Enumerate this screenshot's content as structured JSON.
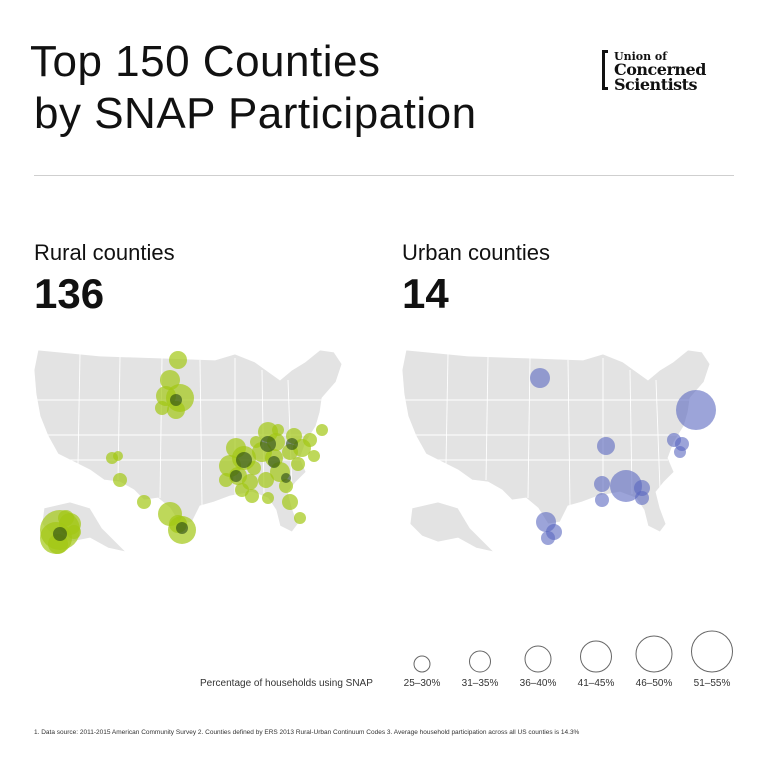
{
  "title_line1": "Top 150 Counties",
  "title_line2": "by SNAP Participation",
  "logo": {
    "line1": "Union of",
    "line2": "Concerned",
    "line3": "Scientists"
  },
  "rural": {
    "label": "Rural counties",
    "count": "136",
    "color": "#a2c814",
    "dark": "#1a3a0e"
  },
  "urban": {
    "label": "Urban counties",
    "count": "14",
    "color": "#5a67c0"
  },
  "legend": {
    "label": "Percentage of households using SNAP",
    "bins": [
      "25–30%",
      "31–35%",
      "36–40%",
      "41–45%",
      "46–50%",
      "51–55%"
    ]
  },
  "footnotes": "1. Data source: 2011-2015 American Community Survey    2. Counties defined by ERS 2013 Rural-Urban Continuum Codes    3. Average household participation across all US counties is 14.3%"
}
